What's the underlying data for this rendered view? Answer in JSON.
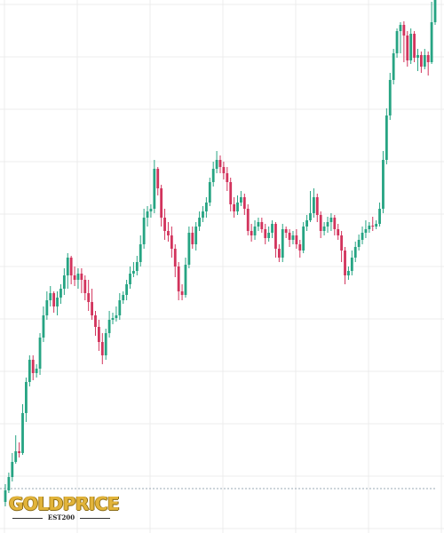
{
  "colors": {
    "up": "#26a483",
    "down": "#d2335c",
    "grid": "#ececec",
    "reference_line": "#9aa8b5",
    "logo_gold": "#e2b43a"
  },
  "logo": {
    "name": "GOLDPRICE",
    "tagline": "EST200"
  },
  "chart_data": {
    "type": "candlestick",
    "grid": true,
    "axis_labels_visible": false,
    "ylim": [
      0,
      600
    ],
    "reference_line": 50,
    "candles": [
      {
        "o": 35,
        "c": 48,
        "h": 55,
        "l": 30
      },
      {
        "o": 48,
        "c": 63,
        "h": 68,
        "l": 45
      },
      {
        "o": 63,
        "c": 80,
        "h": 90,
        "l": 58
      },
      {
        "o": 80,
        "c": 92,
        "h": 110,
        "l": 78
      },
      {
        "o": 92,
        "c": 90,
        "h": 102,
        "l": 85
      },
      {
        "o": 90,
        "c": 135,
        "h": 145,
        "l": 88
      },
      {
        "o": 135,
        "c": 170,
        "h": 175,
        "l": 125
      },
      {
        "o": 170,
        "c": 195,
        "h": 200,
        "l": 165
      },
      {
        "o": 195,
        "c": 180,
        "h": 200,
        "l": 172
      },
      {
        "o": 180,
        "c": 185,
        "h": 190,
        "l": 175
      },
      {
        "o": 185,
        "c": 220,
        "h": 225,
        "l": 178
      },
      {
        "o": 220,
        "c": 245,
        "h": 255,
        "l": 215
      },
      {
        "o": 245,
        "c": 262,
        "h": 272,
        "l": 240
      },
      {
        "o": 262,
        "c": 270,
        "h": 278,
        "l": 255
      },
      {
        "o": 270,
        "c": 255,
        "h": 272,
        "l": 248
      },
      {
        "o": 255,
        "c": 265,
        "h": 272,
        "l": 245
      },
      {
        "o": 265,
        "c": 275,
        "h": 280,
        "l": 258
      },
      {
        "o": 275,
        "c": 290,
        "h": 298,
        "l": 268
      },
      {
        "o": 290,
        "c": 310,
        "h": 315,
        "l": 275
      },
      {
        "o": 310,
        "c": 290,
        "h": 312,
        "l": 280
      },
      {
        "o": 290,
        "c": 285,
        "h": 300,
        "l": 278
      },
      {
        "o": 285,
        "c": 292,
        "h": 298,
        "l": 275
      },
      {
        "o": 292,
        "c": 285,
        "h": 298,
        "l": 270
      },
      {
        "o": 285,
        "c": 270,
        "h": 290,
        "l": 262
      },
      {
        "o": 270,
        "c": 260,
        "h": 285,
        "l": 250
      },
      {
        "o": 260,
        "c": 245,
        "h": 275,
        "l": 240
      },
      {
        "o": 245,
        "c": 232,
        "h": 250,
        "l": 222
      },
      {
        "o": 232,
        "c": 215,
        "h": 240,
        "l": 205
      },
      {
        "o": 215,
        "c": 200,
        "h": 225,
        "l": 190
      },
      {
        "o": 200,
        "c": 225,
        "h": 230,
        "l": 195
      },
      {
        "o": 225,
        "c": 240,
        "h": 250,
        "l": 220
      },
      {
        "o": 240,
        "c": 242,
        "h": 248,
        "l": 235
      },
      {
        "o": 242,
        "c": 245,
        "h": 255,
        "l": 238
      },
      {
        "o": 245,
        "c": 262,
        "h": 270,
        "l": 240
      },
      {
        "o": 262,
        "c": 268,
        "h": 272,
        "l": 258
      },
      {
        "o": 268,
        "c": 280,
        "h": 285,
        "l": 262
      },
      {
        "o": 280,
        "c": 292,
        "h": 300,
        "l": 275
      },
      {
        "o": 292,
        "c": 295,
        "h": 305,
        "l": 288
      },
      {
        "o": 295,
        "c": 305,
        "h": 312,
        "l": 290
      },
      {
        "o": 305,
        "c": 325,
        "h": 335,
        "l": 300
      },
      {
        "o": 325,
        "c": 355,
        "h": 365,
        "l": 320
      },
      {
        "o": 355,
        "c": 362,
        "h": 368,
        "l": 345
      },
      {
        "o": 362,
        "c": 365,
        "h": 370,
        "l": 355
      },
      {
        "o": 365,
        "c": 410,
        "h": 420,
        "l": 360
      },
      {
        "o": 410,
        "c": 388,
        "h": 412,
        "l": 380
      },
      {
        "o": 388,
        "c": 355,
        "h": 392,
        "l": 345
      },
      {
        "o": 355,
        "c": 340,
        "h": 365,
        "l": 330
      },
      {
        "o": 340,
        "c": 335,
        "h": 350,
        "l": 328
      },
      {
        "o": 335,
        "c": 320,
        "h": 345,
        "l": 310
      },
      {
        "o": 320,
        "c": 300,
        "h": 325,
        "l": 288
      },
      {
        "o": 300,
        "c": 272,
        "h": 305,
        "l": 262
      },
      {
        "o": 272,
        "c": 268,
        "h": 280,
        "l": 262
      },
      {
        "o": 268,
        "c": 302,
        "h": 310,
        "l": 265
      },
      {
        "o": 302,
        "c": 338,
        "h": 345,
        "l": 298
      },
      {
        "o": 338,
        "c": 325,
        "h": 345,
        "l": 320
      },
      {
        "o": 325,
        "c": 345,
        "h": 350,
        "l": 318
      },
      {
        "o": 345,
        "c": 355,
        "h": 362,
        "l": 340
      },
      {
        "o": 355,
        "c": 362,
        "h": 368,
        "l": 350
      },
      {
        "o": 362,
        "c": 372,
        "h": 378,
        "l": 355
      },
      {
        "o": 372,
        "c": 395,
        "h": 400,
        "l": 368
      },
      {
        "o": 395,
        "c": 410,
        "h": 418,
        "l": 390
      },
      {
        "o": 410,
        "c": 420,
        "h": 430,
        "l": 405
      },
      {
        "o": 420,
        "c": 412,
        "h": 425,
        "l": 405
      },
      {
        "o": 412,
        "c": 405,
        "h": 418,
        "l": 398
      },
      {
        "o": 405,
        "c": 395,
        "h": 412,
        "l": 385
      },
      {
        "o": 395,
        "c": 370,
        "h": 400,
        "l": 362
      },
      {
        "o": 370,
        "c": 362,
        "h": 378,
        "l": 355
      },
      {
        "o": 362,
        "c": 372,
        "h": 380,
        "l": 358
      },
      {
        "o": 372,
        "c": 378,
        "h": 385,
        "l": 368
      },
      {
        "o": 378,
        "c": 365,
        "h": 382,
        "l": 358
      },
      {
        "o": 365,
        "c": 340,
        "h": 370,
        "l": 335
      },
      {
        "o": 340,
        "c": 335,
        "h": 348,
        "l": 328
      },
      {
        "o": 335,
        "c": 345,
        "h": 352,
        "l": 330
      },
      {
        "o": 345,
        "c": 350,
        "h": 355,
        "l": 340
      },
      {
        "o": 350,
        "c": 342,
        "h": 355,
        "l": 338
      },
      {
        "o": 342,
        "c": 332,
        "h": 348,
        "l": 325
      },
      {
        "o": 332,
        "c": 338,
        "h": 345,
        "l": 328
      },
      {
        "o": 338,
        "c": 348,
        "h": 352,
        "l": 332
      },
      {
        "o": 348,
        "c": 320,
        "h": 350,
        "l": 310
      },
      {
        "o": 320,
        "c": 310,
        "h": 325,
        "l": 305
      },
      {
        "o": 310,
        "c": 342,
        "h": 348,
        "l": 305
      },
      {
        "o": 342,
        "c": 338,
        "h": 345,
        "l": 332
      },
      {
        "o": 338,
        "c": 330,
        "h": 342,
        "l": 322
      },
      {
        "o": 330,
        "c": 335,
        "h": 340,
        "l": 325
      },
      {
        "o": 335,
        "c": 325,
        "h": 342,
        "l": 320
      },
      {
        "o": 325,
        "c": 318,
        "h": 330,
        "l": 310
      },
      {
        "o": 318,
        "c": 345,
        "h": 350,
        "l": 315
      },
      {
        "o": 345,
        "c": 352,
        "h": 358,
        "l": 340
      },
      {
        "o": 352,
        "c": 360,
        "h": 385,
        "l": 350
      },
      {
        "o": 360,
        "c": 378,
        "h": 388,
        "l": 355
      },
      {
        "o": 378,
        "c": 358,
        "h": 382,
        "l": 350
      },
      {
        "o": 358,
        "c": 340,
        "h": 362,
        "l": 332
      },
      {
        "o": 340,
        "c": 345,
        "h": 350,
        "l": 335
      },
      {
        "o": 345,
        "c": 350,
        "h": 356,
        "l": 338
      },
      {
        "o": 350,
        "c": 355,
        "h": 360,
        "l": 340
      },
      {
        "o": 355,
        "c": 342,
        "h": 358,
        "l": 335
      },
      {
        "o": 342,
        "c": 335,
        "h": 348,
        "l": 330
      },
      {
        "o": 335,
        "c": 318,
        "h": 340,
        "l": 305
      },
      {
        "o": 318,
        "c": 290,
        "h": 322,
        "l": 280
      },
      {
        "o": 290,
        "c": 295,
        "h": 300,
        "l": 285
      },
      {
        "o": 295,
        "c": 310,
        "h": 318,
        "l": 290
      },
      {
        "o": 310,
        "c": 322,
        "h": 328,
        "l": 305
      },
      {
        "o": 322,
        "c": 330,
        "h": 336,
        "l": 318
      },
      {
        "o": 330,
        "c": 338,
        "h": 345,
        "l": 325
      },
      {
        "o": 338,
        "c": 342,
        "h": 352,
        "l": 332
      },
      {
        "o": 342,
        "c": 346,
        "h": 350,
        "l": 338
      },
      {
        "o": 346,
        "c": 345,
        "h": 356,
        "l": 340
      },
      {
        "o": 345,
        "c": 348,
        "h": 352,
        "l": 342
      },
      {
        "o": 348,
        "c": 365,
        "h": 372,
        "l": 345
      },
      {
        "o": 365,
        "c": 420,
        "h": 430,
        "l": 360
      },
      {
        "o": 420,
        "c": 470,
        "h": 478,
        "l": 415
      },
      {
        "o": 470,
        "c": 510,
        "h": 518,
        "l": 465
      },
      {
        "o": 510,
        "c": 540,
        "h": 545,
        "l": 505
      },
      {
        "o": 540,
        "c": 565,
        "h": 568,
        "l": 535
      },
      {
        "o": 565,
        "c": 572,
        "h": 575,
        "l": 540
      },
      {
        "o": 572,
        "c": 560,
        "h": 576,
        "l": 530
      },
      {
        "o": 560,
        "c": 532,
        "h": 565,
        "l": 525
      },
      {
        "o": 532,
        "c": 562,
        "h": 568,
        "l": 528
      },
      {
        "o": 562,
        "c": 535,
        "h": 565,
        "l": 530
      },
      {
        "o": 535,
        "c": 538,
        "h": 545,
        "l": 520
      },
      {
        "o": 538,
        "c": 525,
        "h": 542,
        "l": 518
      },
      {
        "o": 525,
        "c": 538,
        "h": 545,
        "l": 522
      },
      {
        "o": 538,
        "c": 530,
        "h": 542,
        "l": 515
      },
      {
        "o": 530,
        "c": 575,
        "h": 598,
        "l": 528
      },
      {
        "o": 575,
        "c": 600,
        "h": 600,
        "l": 572
      }
    ]
  }
}
